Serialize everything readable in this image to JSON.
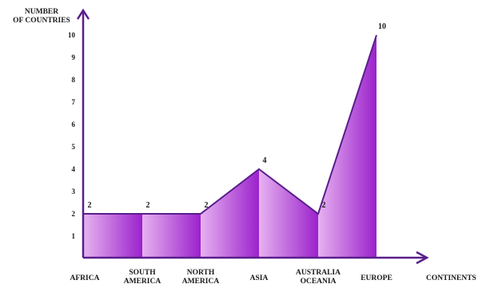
{
  "chart_data": {
    "type": "area",
    "title": "",
    "ylabel_lines": [
      "NUMBER",
      "OF COUNTRIES"
    ],
    "xlabel": "CONTINENTS",
    "categories": [
      [
        "AFRICA"
      ],
      [
        "SOUTH",
        "AMERICA"
      ],
      [
        "NORTH",
        "AMERICA"
      ],
      [
        "ASIA"
      ],
      [
        "AUSTRALIA",
        "OCEANIA"
      ],
      [
        "EUROPE"
      ]
    ],
    "values": [
      2,
      2,
      2,
      4,
      2,
      10
    ],
    "y_ticks": [
      1,
      2,
      3,
      4,
      5,
      6,
      7,
      8,
      9,
      10
    ],
    "ylim": [
      0,
      10
    ],
    "grid": false,
    "legend": "none",
    "colors": {
      "fill_light": "#e6b2f0",
      "fill_dark": "#9b22cc",
      "line": "#5a1e8c",
      "axis": "#5a1e8c"
    }
  }
}
